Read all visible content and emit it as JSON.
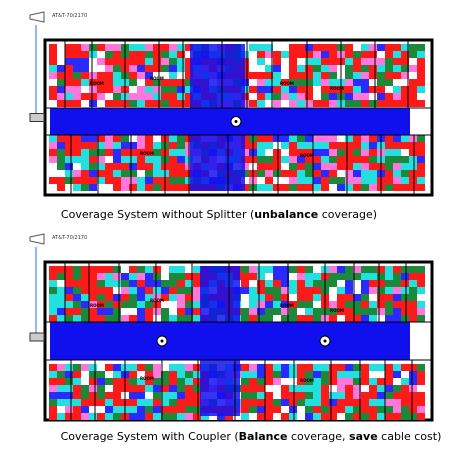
{
  "figures": [
    {
      "antenna_label": "AT&T-70/2170",
      "room_label": "ROOM",
      "caption": [
        {
          "text": "Coverage System without Splitter (",
          "bold": false
        },
        {
          "text": "unbalance",
          "bold": true
        },
        {
          "text": " coverage)",
          "bold": false
        }
      ]
    },
    {
      "antenna_label": "AT&T-70/2170",
      "room_label": "ROOM",
      "caption": [
        {
          "text": "Coverage System with Coupler (",
          "bold": false
        },
        {
          "text": "Balance",
          "bold": true
        },
        {
          "text": " coverage, ",
          "bold": false
        },
        {
          "text": "save",
          "bold": true
        },
        {
          "text": " cable cost)",
          "bold": false
        }
      ]
    }
  ]
}
